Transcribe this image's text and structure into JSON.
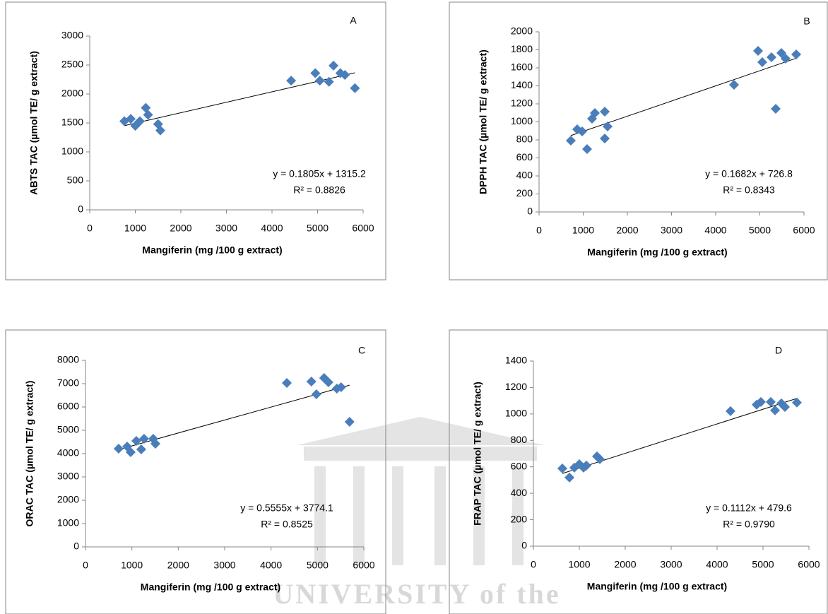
{
  "chart_data": [
    {
      "type": "scatter",
      "label": "A",
      "xlabel": "Mangiferin (mg /100 g extract)",
      "ylabel": "ABTS TAC (µmol TE/ g extract)",
      "x": [
        760,
        900,
        1000,
        1100,
        1230,
        1280,
        1500,
        1550,
        4420,
        4950,
        5050,
        5250,
        5350,
        5500,
        5600,
        5820
      ],
      "y": [
        1530,
        1570,
        1450,
        1530,
        1760,
        1640,
        1480,
        1370,
        2230,
        2360,
        2230,
        2210,
        2490,
        2360,
        2330,
        2100
      ],
      "color": "#4a7ebb",
      "xlim": [
        0,
        6000
      ],
      "xticks": [
        0,
        1000,
        2000,
        3000,
        4000,
        5000,
        6000
      ],
      "ylim": [
        0,
        3000
      ],
      "yticks": [
        0,
        500,
        1000,
        1500,
        2000,
        2500,
        3000
      ],
      "trendline": {
        "slope": 0.1805,
        "intercept": 1315.2,
        "equation": "y = 0.1805x + 1315.2",
        "r_squared": "R² = 0.8826"
      }
    },
    {
      "type": "scatter",
      "label": "B",
      "xlabel": "Mangiferin (mg /100 g extract)",
      "ylabel": "DPPH TAC (µmol TE/ g extract)",
      "x": [
        720,
        864,
        976,
        1088,
        1200,
        1264,
        1488,
        1488,
        1552,
        4416,
        4960,
        5056,
        5264,
        5360,
        5488,
        5584,
        5824
      ],
      "y": [
        792,
        918,
        894,
        698,
        1035,
        1098,
        1114,
        816,
        949,
        1412,
        1788,
        1663,
        1718,
        1145,
        1765,
        1702,
        1749
      ],
      "color": "#4a7ebb",
      "xlim": [
        0,
        6000
      ],
      "xticks": [
        0,
        1000,
        2000,
        3000,
        4000,
        5000,
        6000
      ],
      "ylim": [
        0,
        2000
      ],
      "yticks": [
        0,
        200,
        400,
        600,
        800,
        1000,
        1200,
        1400,
        1600,
        1800,
        2000
      ],
      "trendline": {
        "slope": 0.1682,
        "intercept": 726.8,
        "equation": "y = 0.1682x + 726.8",
        "r_squared": "R² = 0.8343"
      }
    },
    {
      "type": "scatter",
      "label": "C",
      "xlabel": "Mangiferin (mg /100 g extract)",
      "ylabel": "ORAC TAC (µmol TE/ g extract)",
      "x": [
        715,
        898,
        974,
        1096,
        1202,
        1263,
        1461,
        1507,
        4340,
        4870,
        4977,
        5144,
        5236,
        5418,
        5510,
        5692
      ],
      "y": [
        4212,
        4303,
        4061,
        4545,
        4182,
        4636,
        4636,
        4424,
        7030,
        7091,
        6545,
        7242,
        7061,
        6788,
        6848,
        5364
      ],
      "color": "#4a7ebb",
      "xlim": [
        0,
        6000
      ],
      "xticks": [
        0,
        1000,
        2000,
        3000,
        4000,
        5000,
        6000
      ],
      "ylim": [
        0,
        8000
      ],
      "yticks": [
        0,
        1000,
        2000,
        3000,
        4000,
        5000,
        6000,
        7000,
        8000
      ],
      "trendline": {
        "slope": 0.5555,
        "intercept": 3774.1,
        "equation": "y = 0.5555x + 3774.1",
        "r_squared": "R² = 0.8525"
      }
    },
    {
      "type": "scatter",
      "label": "D",
      "xlabel": "Mangiferin (mg /100 g extract)",
      "ylabel": "FRAP TAC (µmol TE/ g extract)",
      "x": [
        631,
        785,
        892,
        1000,
        1092,
        1154,
        1385,
        1446,
        4292,
        4862,
        4954,
        5169,
        5262,
        5400,
        5477,
        5738
      ],
      "y": [
        588,
        519,
        594,
        620,
        594,
        610,
        679,
        658,
        1021,
        1070,
        1091,
        1091,
        1027,
        1080,
        1053,
        1086
      ],
      "color": "#4a7ebb",
      "xlim": [
        0,
        6000
      ],
      "xticks": [
        0,
        1000,
        2000,
        3000,
        4000,
        5000,
        6000
      ],
      "ylim": [
        0,
        1400
      ],
      "yticks": [
        0,
        200,
        400,
        600,
        800,
        1000,
        1200,
        1400
      ],
      "trendline": {
        "slope": 0.1112,
        "intercept": 479.6,
        "equation": "y = 0.1112x + 479.6",
        "r_squared": "R² = 0.9790"
      }
    }
  ],
  "watermark": "UNIVERSITY of the"
}
